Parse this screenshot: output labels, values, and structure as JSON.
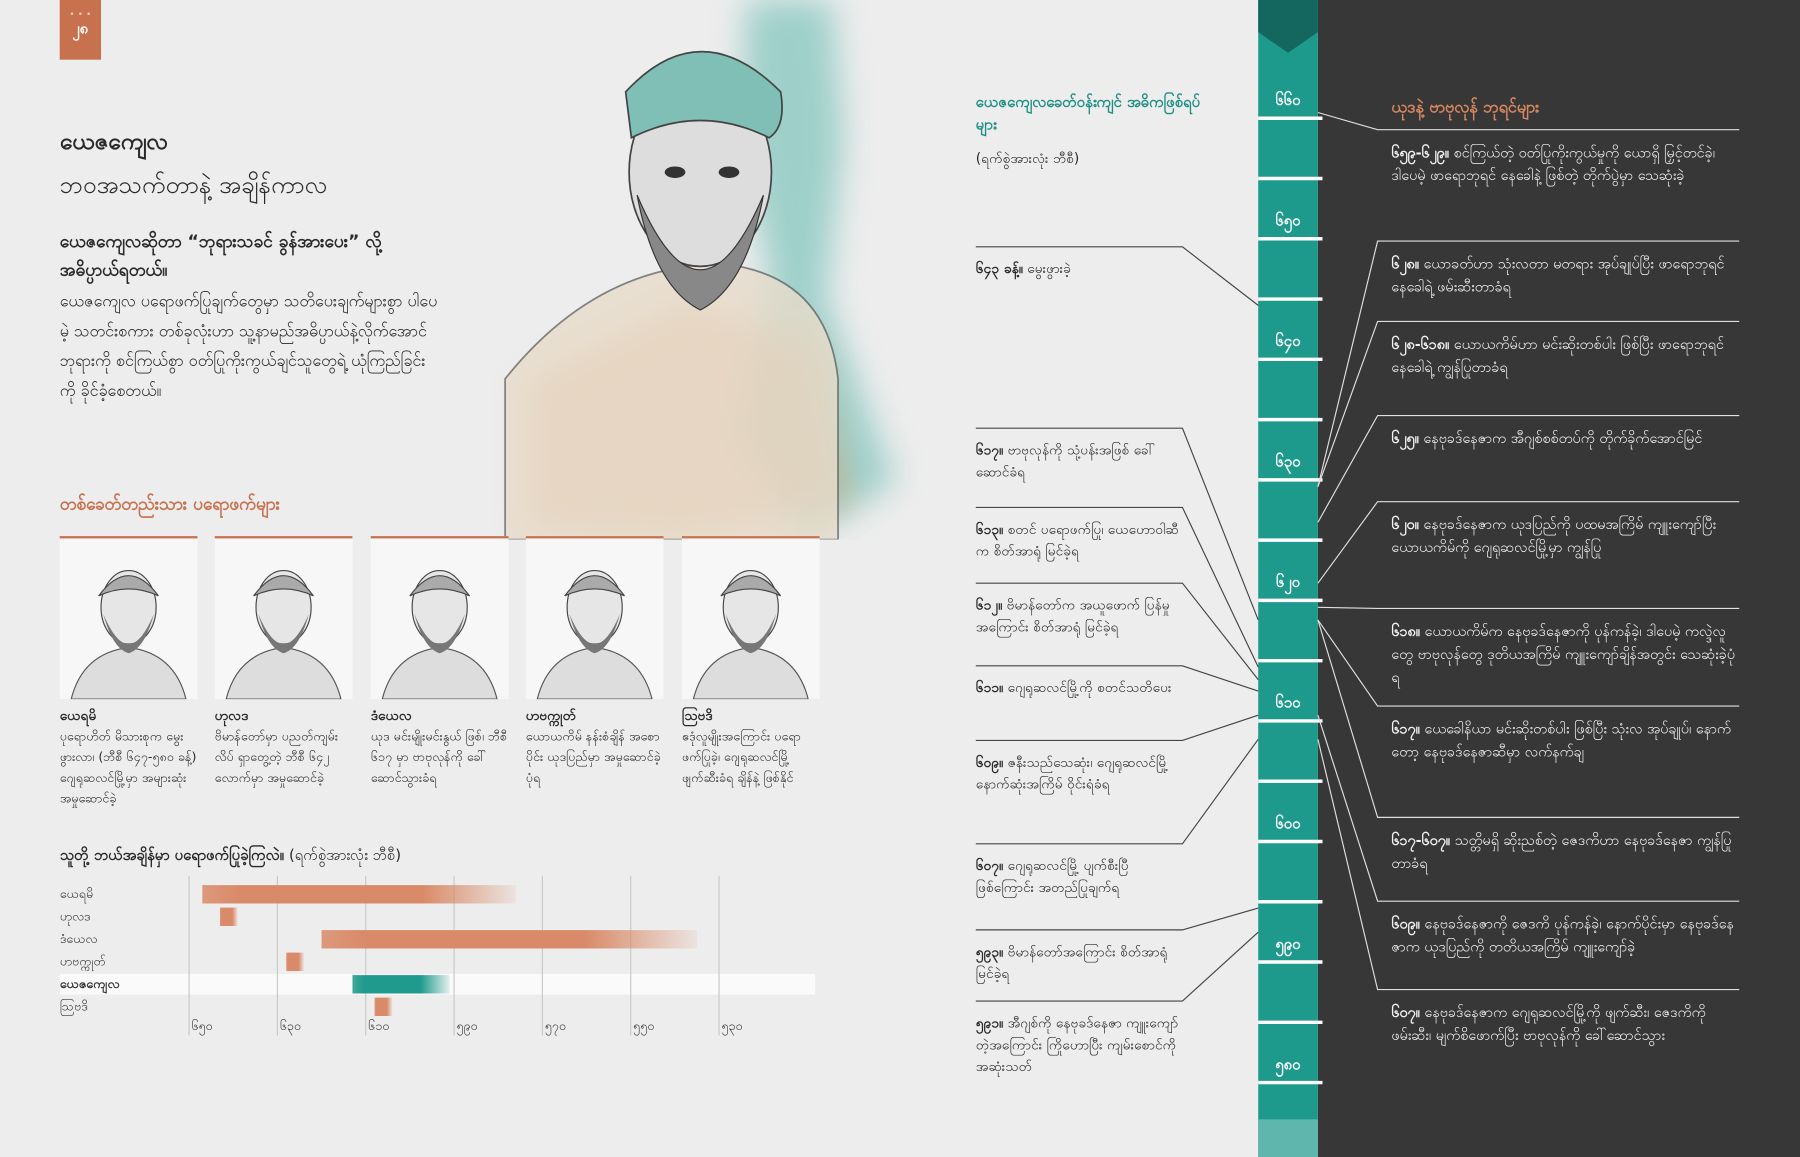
{
  "header": {
    "page_number": "၂၈",
    "title": "ယေဇကျေလ",
    "subtitle": "ဘဝအသက်တာနဲ့ အချိန်ကာလ"
  },
  "intro": {
    "lead": "ယေဇကျေလဆိုတာ “ဘုရားသခင် ခွန်အားပေး” လို့ အဓိပ္ပာယ်ရတယ်။",
    "body": "ယေဇကျေလ ပရောဖက်ပြုချက်တွေမှာ သတိပေးချက်များစွာ ပါပေမဲ့ သတင်းစကား တစ်ခုလုံးဟာ သူ့နာမည်အဓိပ္ပာယ်နဲ့လိုက်အောင် ဘုရားကို စင်ကြယ်စွာ ဝတ်ပြုကိုးကွယ်ချင်သူတွေရဲ့ ယုံကြည်ခြင်းကို ခိုင်ခံ့စေတယ်။"
  },
  "prophets": {
    "heading": "တစ်ခေတ်တည်းသား ပရောဖက်များ",
    "items": [
      {
        "name": "ယေရမိ",
        "description": "ပုရောဟိတ် မိသားစုက မွေးဖွားလာ၊ (ဘီစီ ၆၄၇-၅၈၀ ခန့်) ဂျေရုဆလင်မြို့မှာ အများဆုံး အမှုဆောင်ခဲ့"
      },
      {
        "name": "ဟုလဒ",
        "description": "ဗိမာန်တော်မှာ ပညတ်ကျမ်းလိပ် ရှာတွေ့တဲ့ ဘီစီ ၆၄၂ လောက်မှာ အမှုဆောင်ခဲ့"
      },
      {
        "name": "ဒံယေလ",
        "description": "ယုဒ မင်းမျိုးမင်းနွယ် ဖြစ်၊ ဘီစီ ၆၁၇ မှာ ဗာဗုလုန်ကို ခေါ်ဆောင်သွားခံရ"
      },
      {
        "name": "ဟဗက္ကုတ်",
        "description": "ယောယကိမ် နန်းစံချိန် အစောပိုင်း ယုဒပြည်မှာ အမှုဆောင်ခဲ့ပုံရ"
      },
      {
        "name": "ဩဗဒိ",
        "description": "ဧဒုံလူမျိုးအကြောင်း ပရောဖက်ပြုခဲ့၊ ဂျေရုဆလင်မြို့ ဖျက်ဆီးခံရ ချိန်နဲ့ ဖြစ်နိုင်"
      }
    ]
  },
  "chart_data": {
    "type": "gantt",
    "title": "သူတို့ ဘယ်အချိန်မှာ ပရောဖက်ပြုခဲ့ကြလဲ။",
    "subtitle": "(ရက်စွဲအားလုံး ဘီစီ)",
    "categories": [
      "ယေရမိ",
      "ဟုလဒ",
      "ဒံယေလ",
      "ဟဗက္ကုတ်",
      "ယေဇကျေလ",
      "ဩဗဒိ"
    ],
    "start": [
      647,
      643,
      620,
      628,
      613,
      608
    ],
    "end": [
      576,
      639,
      535,
      624,
      591,
      604
    ],
    "colors": [
      "#d98a68",
      "#d98a68",
      "#d98a68",
      "#d98a68",
      "#1f9a8c",
      "#d98a68"
    ],
    "bold": [
      false,
      false,
      false,
      false,
      true,
      false
    ],
    "xlim": [
      652,
      508
    ],
    "xticks": [
      {
        "value": 650,
        "label": "၆၅၀"
      },
      {
        "value": 630,
        "label": "၆၃၀"
      },
      {
        "value": 610,
        "label": "၆၁၀"
      },
      {
        "value": 590,
        "label": "၅၉၀"
      },
      {
        "value": 570,
        "label": "၅၇၀"
      },
      {
        "value": 550,
        "label": "၅၅၀"
      },
      {
        "value": 530,
        "label": "၅၃၀"
      }
    ],
    "grid": true
  },
  "events": {
    "heading": "ယေဇကျေလခေတ်ဝန်းကျင် အဓိကဖြစ်ရပ်များ",
    "note": "(ရက်စွဲအားလုံး ဘီစီ)",
    "items": [
      {
        "date": "၆၄၃ ခန့်။",
        "text": "မွေးဖွားခဲ့"
      },
      {
        "date": "၆၁၇။",
        "text": "ဗာဗုလုန်ကို သုံ့ပန်းအဖြစ် ခေါ်ဆောင်ခံရ"
      },
      {
        "date": "၆၁၃။",
        "text": "စတင် ပရောဖက်ပြု၊ ယေဟောဝါဆီက စိတ်အာရုံ မြင်ခဲ့ရ"
      },
      {
        "date": "၆၁၂။",
        "text": "ဗိမာန်တော်က အယူဖောက် ပြန်မှုအကြောင်း စိတ်အာရုံ မြင်ခဲ့ရ"
      },
      {
        "date": "၆၁၁။",
        "text": "ဂျေရုဆလင်မြို့ကို စတင်သတိပေး"
      },
      {
        "date": "၆၀၉။",
        "text": "ဇနီးသည်သေဆုံး၊ ဂျေရုဆလင်မြို့ နောက်ဆုံးအကြိမ် ဝိုင်းရံခံရ"
      },
      {
        "date": "၆၀၇။",
        "text": "ဂျေရုဆလင်မြို့ ပျက်စီးပြီ ဖြစ်ကြောင်း အတည်ပြုချက်ရ"
      },
      {
        "date": "၅၉၃။",
        "text": "ဗိမာန်တော်အကြောင်း စိတ်အာရုံ မြင်ခဲ့ရ"
      },
      {
        "date": "၅၉၁။",
        "text": "အီဂျစ်ကို နေဗုခဒ်နေဇာ ကျူးကျော်တဲ့အကြောင်း ကြိုဟောပြီး ကျမ်းစောင်ကို အဆုံးသတ်"
      }
    ]
  },
  "kings": {
    "heading": "ယုဒနဲ့ ဗာဗုလုန် ဘုရင်များ",
    "items": [
      {
        "date": "၆၅၉-၆၂၉။",
        "text": "စင်ကြယ်တဲ့ ဝတ်ပြုကိုးကွယ်မှုကို ယောရှိ မြှင့်တင်ခဲ့၊ ဒါပေမဲ့ ဖာရောဘုရင် နေခေါနဲ့ ဖြစ်တဲ့ တိုက်ပွဲမှာ သေဆုံးခဲ့"
      },
      {
        "date": "၆၂၈။",
        "text": "ယောခတ်ဟာ သုံးလတာ မတရား အုပ်ချုပ်ပြီး ဖာရောဘုရင် နေခေါရဲ့ ဖမ်းဆီးတာခံရ"
      },
      {
        "date": "၆၂၈-၆၁၈။",
        "text": "ယောယကိမ်ဟာ မင်းဆိုးတစ်ပါး ဖြစ်ပြီး ဖာရောဘုရင် နေခေါရဲ့ ကျွန်ပြုတာခံရ"
      },
      {
        "date": "၆၂၅။",
        "text": "နေဗုခဒ်နေဇာက အီဂျစ်စစ်တပ်ကို တိုက်ခိုက်အောင်မြင်"
      },
      {
        "date": "၆၂၀။",
        "text": "နေဗုခဒ်နေဇာက ယုဒပြည်ကို ပထမအကြိမ် ကျူးကျော်ပြီး ယောယကိမ်ကို ဂျေရုဆလင်မြို့မှာ ကျွန်ပြု"
      },
      {
        "date": "၆၁၈။",
        "text": "ယောယကိမ်က နေဗုခဒ်နေဇာကို ပုန်ကန်ခဲ့၊ ဒါပေမဲ့ ကလ္ဒဲလူတွေ ဗာဗုလုန်တွေ ဒုတိယအကြိမ် ကျူးကျော်ချိန်အတွင်း သေဆုံးခဲ့ပုံရ"
      },
      {
        "date": "၆၁၇။",
        "text": "ယေခေါနိယာ မင်းဆိုးတစ်ပါး ဖြစ်ပြီး သုံးလ အုပ်ချုပ်၊ နောက်တော့ နေဗုခဒ်နေဇာဆီမှာ လက်နက်ချ"
      },
      {
        "date": "၆၁၇-၆၀၇။",
        "text": "သတ္တိမရှိ ဆိုးညစ်တဲ့ ဇေဒကိဟာ နေဗုခဒ်နေဇာ ကျွန်ပြုတာခံရ"
      },
      {
        "date": "၆၀၉။",
        "text": "နေဗုခဒ်နေဇာကို ဇေဒကိ ပုန်ကန်ခဲ့၊ နောက်ပိုင်းမှာ နေဗုခဒ်နေဇာက ယုဒပြည်ကို တတိယအကြိမ် ကျူးကျော်ခဲ့"
      },
      {
        "date": "၆၀၇။",
        "text": "နေဗုခဒ်နေဇာက ဂျေရုဆလင်မြို့ကို ဖျက်ဆီး၊ ဇေဒကိကို ဖမ်းဆီး၊ မျက်စိဖောက်ပြီး ဗာဗုလုန်ကို ခေါ်ဆောင်သွား"
      }
    ]
  },
  "timeline": {
    "years": [
      "၆၆၀",
      "၆၅၀",
      "၆၄၀",
      "၆၃၀",
      "၆၂၀",
      "၆၁၀",
      "၆၀၀",
      "၅၉၀",
      "၅၈၀"
    ]
  }
}
